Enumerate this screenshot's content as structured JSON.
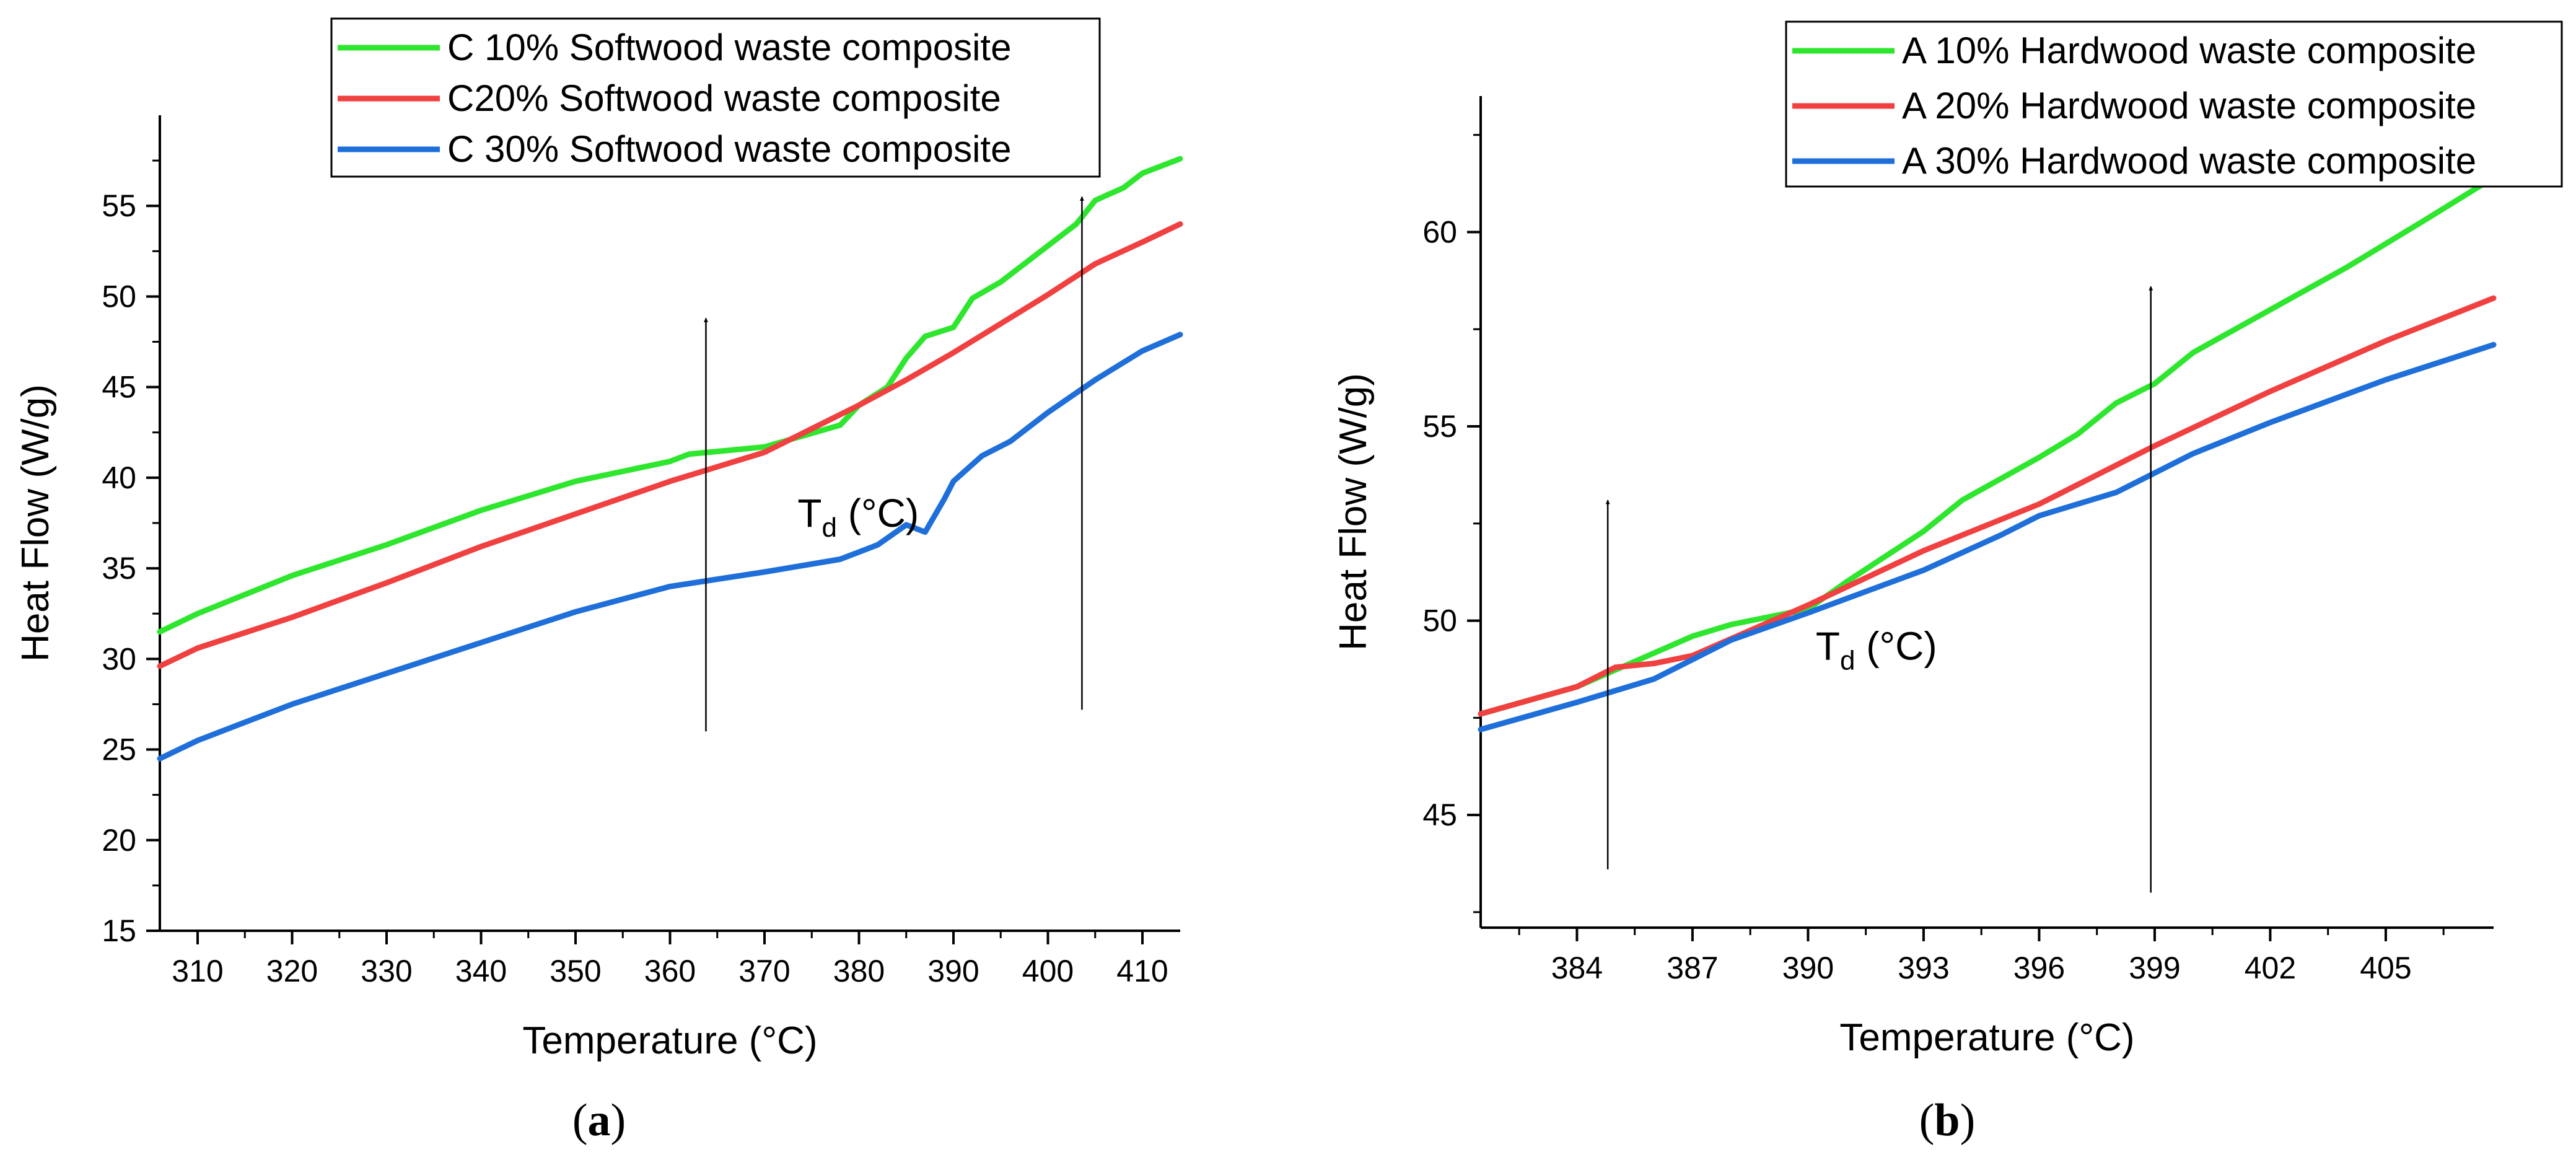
{
  "chart_data": [
    {
      "type": "line",
      "panel_label": "(a)",
      "panel_letter": "a",
      "xlabel": "Temperature (°C)",
      "ylabel": "Heat Flow (W/g)",
      "xlim": [
        306,
        414
      ],
      "ylim": [
        15,
        60
      ],
      "xticks": [
        310,
        320,
        330,
        340,
        350,
        360,
        370,
        380,
        390,
        400,
        410
      ],
      "yticks": [
        15,
        20,
        25,
        30,
        35,
        40,
        45,
        50,
        55
      ],
      "annotation": {
        "main": "T",
        "sub": "d",
        "rest": " (°C)",
        "x": 373.5,
        "y": 37.3
      },
      "arrows": [
        {
          "x": 363.8,
          "y_from": 26.0,
          "y_to": 48.8
        },
        {
          "x": 403.6,
          "y_from": 27.2,
          "y_to": 55.5
        }
      ],
      "legend_position": "top-right",
      "series": [
        {
          "name": "C 10% Softwood waste composite",
          "color": "#2ee62e",
          "x": [
            306,
            310,
            320,
            330,
            340,
            350,
            360,
            362,
            370,
            378,
            380,
            383,
            385,
            387,
            390,
            392,
            395,
            398,
            400,
            403,
            405,
            408,
            410,
            414
          ],
          "y": [
            31.5,
            32.5,
            34.6,
            36.3,
            38.2,
            39.8,
            40.9,
            41.3,
            41.7,
            42.9,
            44.0,
            45.0,
            46.6,
            47.8,
            48.3,
            49.9,
            50.8,
            52.0,
            52.8,
            54.0,
            55.3,
            56.0,
            56.8,
            57.6
          ]
        },
        {
          "name": "C20% Softwood waste composite",
          "color": "#f04040",
          "x": [
            306,
            310,
            320,
            330,
            340,
            350,
            360,
            370,
            380,
            385,
            390,
            395,
            400,
            405,
            410,
            414
          ],
          "y": [
            29.6,
            30.6,
            32.3,
            34.2,
            36.2,
            38.0,
            39.8,
            41.4,
            44.0,
            45.4,
            46.9,
            48.5,
            50.1,
            51.8,
            53.0,
            54.0
          ]
        },
        {
          "name": "C 30% Softwood waste composite",
          "color": "#1e6fd9",
          "x": [
            306,
            310,
            320,
            330,
            340,
            350,
            360,
            370,
            378,
            382,
            385,
            387,
            389,
            390,
            393,
            396,
            400,
            405,
            410,
            414
          ],
          "y": [
            24.5,
            25.5,
            27.5,
            29.2,
            30.9,
            32.6,
            34.0,
            34.8,
            35.5,
            36.3,
            37.4,
            37.0,
            38.8,
            39.8,
            41.2,
            42.0,
            43.6,
            45.4,
            47.0,
            47.9
          ]
        }
      ]
    },
    {
      "type": "line",
      "panel_label": "(b)",
      "panel_letter": "b",
      "xlabel": "Temperature (°C)",
      "ylabel": "Heat Flow (W/g)",
      "xlim": [
        381.5,
        407.8
      ],
      "ylim": [
        42.1,
        63.5
      ],
      "xticks": [
        384,
        387,
        390,
        393,
        396,
        399,
        402,
        405
      ],
      "yticks": [
        45,
        50,
        55,
        60
      ],
      "annotation": {
        "main": "T",
        "sub": "d",
        "rest": " (°C)",
        "x": 390.2,
        "y": 49.0
      },
      "arrows": [
        {
          "x": 384.8,
          "y_from": 43.6,
          "y_to": 53.1
        },
        {
          "x": 398.9,
          "y_from": 43.0,
          "y_to": 58.6
        }
      ],
      "legend_position": "top-right",
      "series": [
        {
          "name": "A 10% Hardwood waste composite",
          "color": "#2ee62e",
          "x": [
            381.5,
            384,
            387,
            388,
            390,
            391,
            393,
            394,
            396,
            397,
            398,
            399,
            400,
            402,
            404,
            406,
            407.8
          ],
          "y": [
            47.6,
            48.3,
            49.6,
            49.9,
            50.3,
            51.0,
            52.3,
            53.1,
            54.2,
            54.8,
            55.6,
            56.1,
            56.9,
            58.0,
            59.1,
            60.3,
            61.4
          ]
        },
        {
          "name": "A 20% Hardwood waste composite",
          "color": "#f04040",
          "x": [
            381.5,
            384,
            385,
            386,
            387,
            390,
            393,
            396,
            399,
            402,
            405,
            407.8
          ],
          "y": [
            47.6,
            48.3,
            48.8,
            48.9,
            49.1,
            50.4,
            51.8,
            53.0,
            54.5,
            55.9,
            57.2,
            58.3
          ]
        },
        {
          "name": "A 30% Hardwood waste composite",
          "color": "#1e6fd9",
          "x": [
            381.5,
            384,
            386,
            388,
            390,
            393,
            395,
            396,
            398,
            400,
            402,
            405,
            407.8
          ],
          "y": [
            47.2,
            47.9,
            48.5,
            49.5,
            50.2,
            51.3,
            52.2,
            52.7,
            53.3,
            54.3,
            55.1,
            56.2,
            57.1
          ]
        }
      ]
    }
  ]
}
